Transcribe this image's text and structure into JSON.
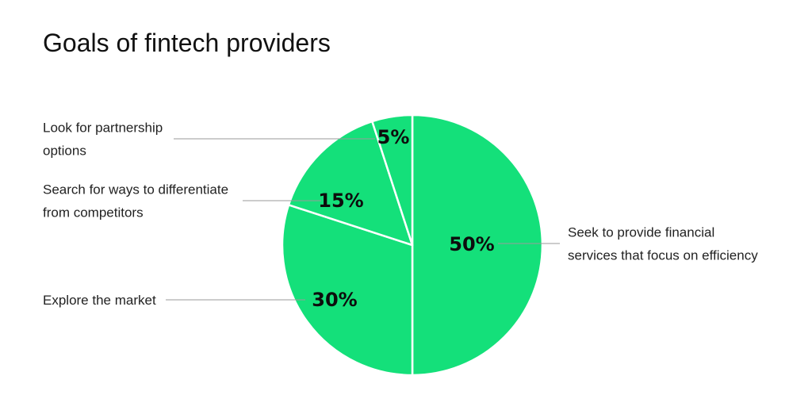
{
  "chart_data": {
    "type": "pie",
    "title": "Goals of fintech providers",
    "color": "#14e07a",
    "slices": [
      {
        "label_lines": [
          "Seek to provide financial",
          "services that focus on efficiency"
        ],
        "value": 50,
        "value_label": "50%"
      },
      {
        "label_lines": [
          "Explore the market"
        ],
        "value": 30,
        "value_label": "30%"
      },
      {
        "label_lines": [
          "Search for ways to differentiate",
          "from competitors"
        ],
        "value": 15,
        "value_label": "15%"
      },
      {
        "label_lines": [
          "Look for partnership",
          "options"
        ],
        "value": 5,
        "value_label": "5%"
      }
    ]
  }
}
